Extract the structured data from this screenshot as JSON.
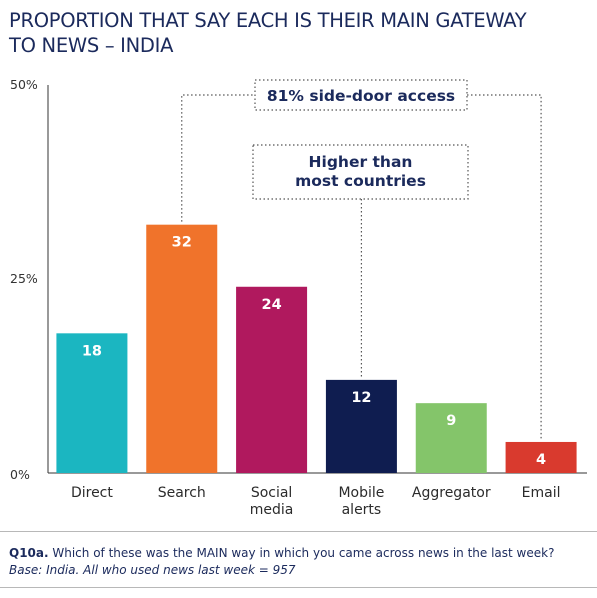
{
  "title": [
    "PROPORTION THAT SAY EACH IS THEIR MAIN GATEWAY",
    "TO NEWS – INDIA"
  ],
  "chart_data": {
    "type": "bar",
    "categories": [
      [
        "Direct"
      ],
      [
        "Search"
      ],
      [
        "Social",
        "media"
      ],
      [
        "Mobile",
        "alerts"
      ],
      [
        "Aggregator"
      ],
      [
        "Email"
      ]
    ],
    "values": [
      18,
      32,
      24,
      12,
      9,
      4
    ],
    "colors": [
      "#1bb6c1",
      "#f0732b",
      "#b0195e",
      "#0f1d50",
      "#84c56a",
      "#d93a2e"
    ],
    "ylim": [
      0,
      50
    ],
    "yticks": [
      0,
      25,
      50
    ],
    "ytick_labels": [
      "0%",
      "25%",
      "50%"
    ],
    "grid": false,
    "annotations": [
      {
        "lines": [
          "81% side-door access"
        ],
        "spans_categories": [
          "Search",
          "Social media",
          "Mobile alerts",
          "Aggregator",
          "Email"
        ]
      },
      {
        "lines": [
          "Higher than",
          "most countries"
        ],
        "points_to": "Mobile alerts"
      }
    ]
  },
  "footnote": {
    "question_id": "Q10a.",
    "question": " Which of these was the MAIN way in which you came across news in the last week?",
    "base": "Base: India. All who used news last week = 957"
  }
}
